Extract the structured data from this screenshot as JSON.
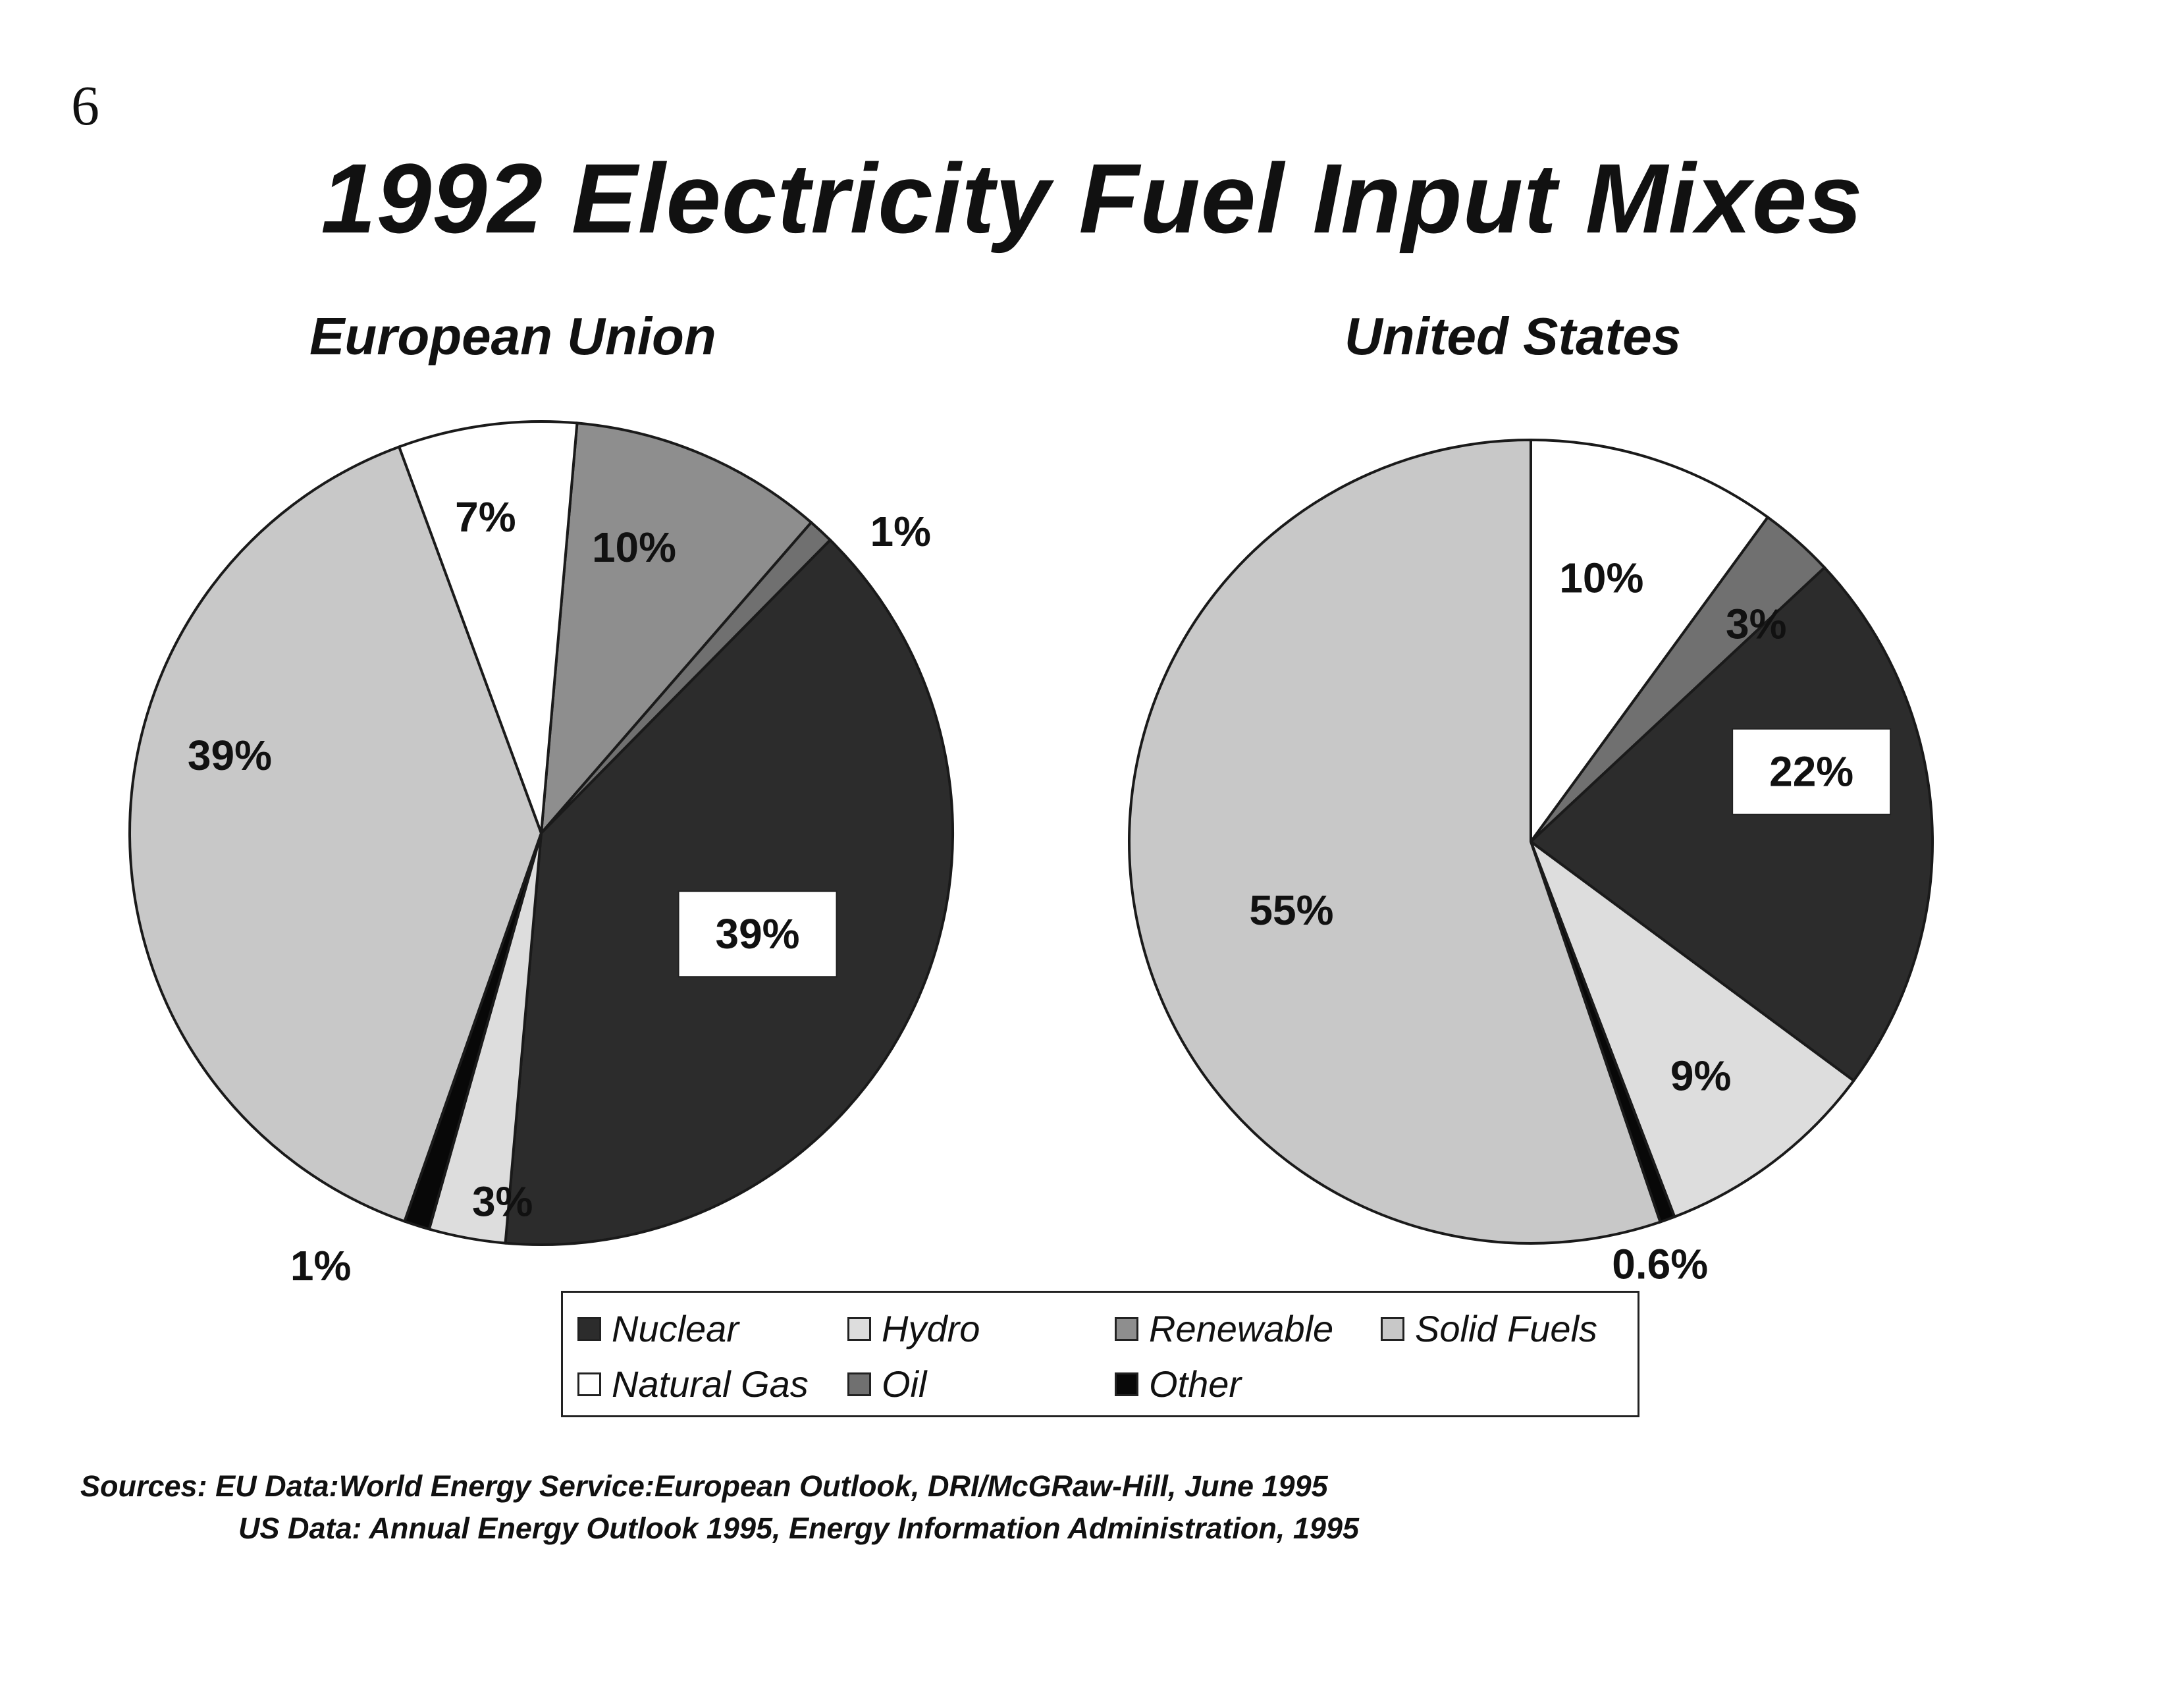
{
  "page_number": "6",
  "title": "1992 Electricity Fuel Input Mixes",
  "colors": {
    "Nuclear": "#2c2c2c",
    "Hydro": "#dddddd",
    "Renewable": "#8e8e8e",
    "Solid Fuels": "#c8c8c8",
    "Natural Gas": "#ffffff",
    "Oil": "#707070",
    "Other": "#080808",
    "outline": "#1a1a1a"
  },
  "legend": {
    "items": [
      "Nuclear",
      "Hydro",
      "Renewable",
      "Solid Fuels",
      "Natural Gas",
      "Oil",
      "Other"
    ]
  },
  "chart_data": [
    {
      "type": "pie",
      "title": "European Union",
      "slices": [
        {
          "category": "Renewable",
          "value": 10,
          "label": "10%"
        },
        {
          "category": "Oil",
          "value": 1,
          "label": "1%"
        },
        {
          "category": "Nuclear",
          "value": 39,
          "label": "39%"
        },
        {
          "category": "Hydro",
          "value": 3,
          "label": "3%"
        },
        {
          "category": "Other",
          "value": 1,
          "label": "1%"
        },
        {
          "category": "Solid Fuels",
          "value": 39,
          "label": "39%"
        },
        {
          "category": "Natural Gas",
          "value": 7,
          "label": "7%"
        }
      ]
    },
    {
      "type": "pie",
      "title": "United States",
      "slices": [
        {
          "category": "Natural Gas",
          "value": 10,
          "label": "10%"
        },
        {
          "category": "Oil",
          "value": 3,
          "label": "3%"
        },
        {
          "category": "Nuclear",
          "value": 22,
          "label": "22%"
        },
        {
          "category": "Hydro",
          "value": 9,
          "label": "9%"
        },
        {
          "category": "Other",
          "value": 0.6,
          "label": "0.6%"
        },
        {
          "category": "Solid Fuels",
          "value": 55,
          "label": "55%"
        }
      ]
    }
  ],
  "sources": {
    "line1": "Sources: EU Data:World Energy Service:European Outlook, DRI/McGRaw-Hill, June 1995",
    "line2": "US Data: Annual Energy Outlook 1995, Energy Information Administration, 1995"
  }
}
